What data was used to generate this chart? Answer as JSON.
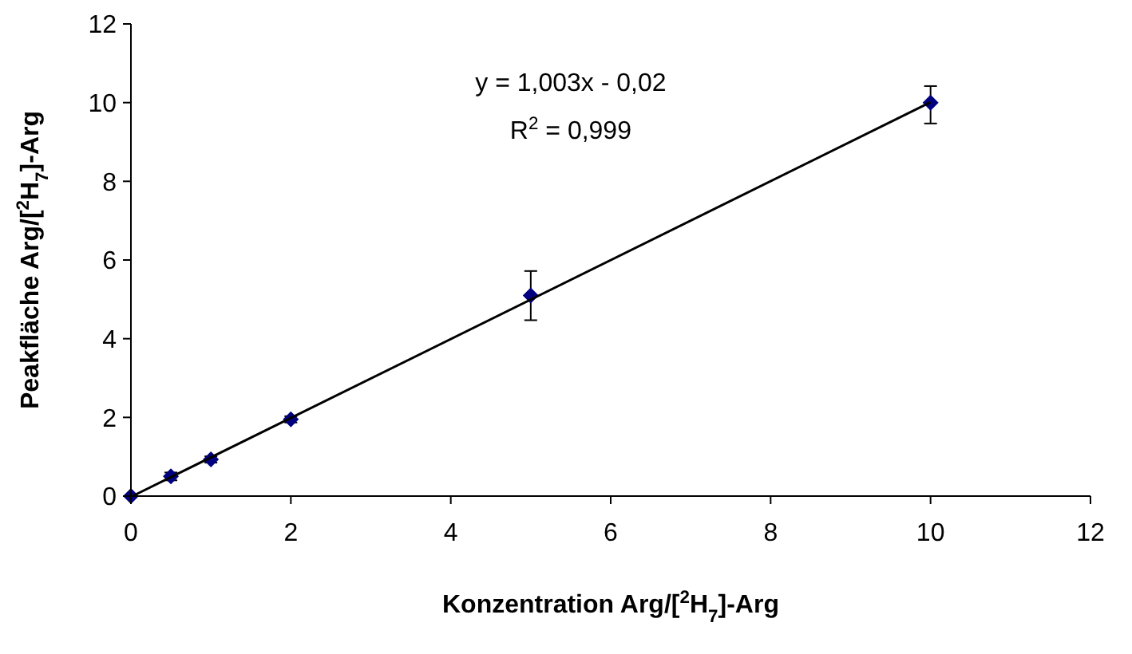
{
  "chart_data": {
    "type": "scatter",
    "xlabel": "Konzentration Arg/[$^{2}$H$_{7}$]-Arg",
    "ylabel": "Peakfläche  Arg/[$^{2}$H$_{7}$]-Arg",
    "xlim": [
      0,
      12
    ],
    "ylim": [
      0,
      12
    ],
    "xticks": [
      0,
      2,
      4,
      6,
      8,
      10,
      12
    ],
    "yticks": [
      0,
      2,
      4,
      6,
      8,
      10,
      12
    ],
    "grid": false,
    "series": [
      {
        "marker": "diamond",
        "color": "#000080",
        "x": [
          0,
          0.5,
          1,
          2,
          5,
          10
        ],
        "values": [
          0,
          0.5,
          0.93,
          1.95,
          5.1,
          10.0
        ],
        "errors": [
          null,
          0.1,
          0.08,
          0.08,
          [
            4.47,
            5.72
          ],
          [
            9.47,
            10.42
          ]
        ]
      },
      {
        "type": "line",
        "color": "#000000",
        "x": [
          0.02,
          10
        ],
        "values": [
          0.0,
          10.01
        ]
      }
    ],
    "annotations": [
      {
        "text": "y = 1,003x - 0,02"
      },
      {
        "text": "R$^{2}$ = 0,999"
      }
    ]
  }
}
